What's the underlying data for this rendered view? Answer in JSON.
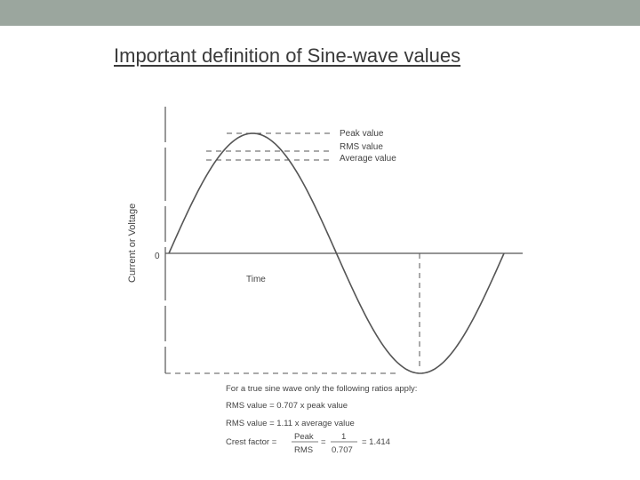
{
  "slide": {
    "title": "Important definition of Sine-wave values"
  },
  "figure": {
    "axis_label": "Current or Voltage",
    "zero_label": "0",
    "time_label": "Time",
    "legend": {
      "peak": "Peak value",
      "rms": "RMS value",
      "average": "Average value"
    },
    "notes": {
      "intro": "For a true sine wave only the following ratios apply:",
      "rms_peak": "RMS value = 0.707 x peak value",
      "rms_average": "RMS value = 1.11 x average value",
      "crest_label": "Crest factor =",
      "crest_num": "Peak",
      "crest_den": "RMS",
      "equals": "=",
      "frac_num": "1",
      "frac_den": "0.707",
      "crest_result": "= 1.414"
    },
    "colors": {
      "stroke": "#555555"
    }
  }
}
